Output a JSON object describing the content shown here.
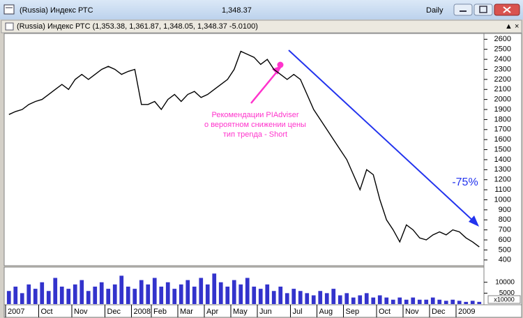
{
  "window": {
    "title": "(Russia) Индекс РТС",
    "price": "1,348.37",
    "period": "Daily"
  },
  "chart_data": [
    {
      "type": "line",
      "title": "(Russia) Индекс РТС",
      "subtitle": "(1,353.38, 1,361.87, 1,348.05, 1,348.37 -5.0100)",
      "color": "#000000",
      "categories": [
        "2007",
        null,
        null,
        null,
        null,
        "Oct",
        null,
        null,
        null,
        null,
        "Nov",
        null,
        null,
        null,
        null,
        "Dec",
        null,
        null,
        null,
        "2008",
        null,
        null,
        "Feb",
        null,
        null,
        null,
        "Mar",
        null,
        null,
        null,
        "Apr",
        null,
        null,
        null,
        "May",
        null,
        null,
        null,
        "Jun",
        null,
        null,
        null,
        null,
        "Jul",
        null,
        null,
        null,
        "Aug",
        null,
        null,
        null,
        "Sep",
        null,
        null,
        null,
        null,
        "Oct",
        null,
        null,
        null,
        "Nov",
        null,
        null,
        null,
        "Dec",
        null,
        null,
        null,
        "2009",
        null,
        null,
        null
      ],
      "values": [
        1850,
        1880,
        1900,
        1950,
        1980,
        2000,
        2050,
        2100,
        2150,
        2100,
        2200,
        2250,
        2200,
        2250,
        2300,
        2330,
        2300,
        2250,
        2280,
        2300,
        1950,
        1950,
        1980,
        1900,
        2000,
        2050,
        1980,
        2050,
        2080,
        2020,
        2050,
        2100,
        2150,
        2200,
        2300,
        2480,
        2450,
        2420,
        2350,
        2400,
        2300,
        2250,
        2200,
        2250,
        2200,
        2050,
        1900,
        1800,
        1700,
        1600,
        1500,
        1400,
        1250,
        1100,
        1300,
        1250,
        1000,
        800,
        700,
        580,
        750,
        700,
        620,
        600,
        650,
        680,
        650,
        700,
        680,
        620,
        580,
        530
      ],
      "ylim": [
        350,
        2630
      ],
      "yticks": [
        400,
        500,
        600,
        700,
        800,
        900,
        1000,
        1100,
        1200,
        1300,
        1400,
        1500,
        1600,
        1700,
        1800,
        1900,
        2000,
        2100,
        2200,
        2300,
        2400,
        2500,
        2600
      ],
      "annotation_lines": [
        "Рекомендации PIAdviser",
        "о вероятном снижении цены",
        "тип трenда - Short"
      ],
      "annotation_color": "#ff33cc",
      "trend_label": "-75%",
      "trend_color": "#2233ee"
    },
    {
      "type": "bar",
      "color": "#3333cc",
      "values": [
        6000,
        8000,
        5000,
        9000,
        7000,
        10000,
        6000,
        12000,
        8000,
        7000,
        9000,
        11000,
        6000,
        8000,
        10000,
        7000,
        9000,
        13000,
        8000,
        7000,
        11000,
        9000,
        12000,
        8000,
        10000,
        7000,
        9000,
        11000,
        8000,
        12000,
        9000,
        14000,
        10000,
        8000,
        11000,
        9000,
        12000,
        8000,
        7000,
        9000,
        6000,
        8000,
        5000,
        7000,
        6000,
        5000,
        4000,
        6000,
        5000,
        7000,
        4000,
        5000,
        3000,
        4000,
        5000,
        3000,
        4000,
        3000,
        2000,
        3000,
        2000,
        3000,
        2000,
        2000,
        3000,
        2000,
        1500,
        2000,
        1500,
        1000,
        1500,
        1000
      ],
      "ylim": [
        0,
        16000
      ],
      "yticks": [
        5000,
        10000
      ],
      "unit_label": "x10000"
    }
  ]
}
